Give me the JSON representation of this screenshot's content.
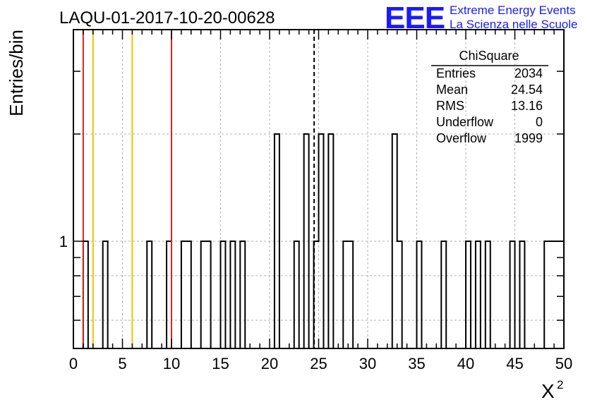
{
  "chart_data": {
    "type": "histogram",
    "title": "LAQU-01-2017-10-20-00628",
    "xlabel": "X",
    "xlabel_superscript": "2",
    "ylabel": "Entries/bin",
    "xlim": [
      0,
      50
    ],
    "ylim": [
      0.5,
      4
    ],
    "y_scale": "log",
    "grid": true,
    "x_ticks": [
      0,
      5,
      10,
      15,
      20,
      25,
      30,
      35,
      40,
      45,
      50
    ],
    "y_tick_labels": [
      {
        "value": 1,
        "label": "1"
      }
    ],
    "bin_width": 0.5,
    "bins": [
      {
        "x": 1.0,
        "value": 1
      },
      {
        "x": 3.0,
        "value": 1
      },
      {
        "x": 7.5,
        "value": 1
      },
      {
        "x": 9.5,
        "value": 1
      },
      {
        "x": 11.0,
        "value": 1
      },
      {
        "x": 11.5,
        "value": 1
      },
      {
        "x": 13.0,
        "value": 1
      },
      {
        "x": 13.5,
        "value": 1
      },
      {
        "x": 15.0,
        "value": 1
      },
      {
        "x": 16.0,
        "value": 1
      },
      {
        "x": 17.0,
        "value": 1
      },
      {
        "x": 20.5,
        "value": 2
      },
      {
        "x": 22.5,
        "value": 1
      },
      {
        "x": 23.5,
        "value": 2
      },
      {
        "x": 24.5,
        "value": 1
      },
      {
        "x": 25.0,
        "value": 2
      },
      {
        "x": 26.0,
        "value": 2
      },
      {
        "x": 27.5,
        "value": 1
      },
      {
        "x": 28.0,
        "value": 1
      },
      {
        "x": 32.5,
        "value": 2
      },
      {
        "x": 33.0,
        "value": 1
      },
      {
        "x": 35.0,
        "value": 1
      },
      {
        "x": 37.5,
        "value": 1
      },
      {
        "x": 40.0,
        "value": 1
      },
      {
        "x": 41.0,
        "value": 1
      },
      {
        "x": 42.0,
        "value": 1
      },
      {
        "x": 44.5,
        "value": 1
      },
      {
        "x": 45.5,
        "value": 1
      },
      {
        "x": 48.0,
        "value": 1
      },
      {
        "x": 48.5,
        "value": 1
      },
      {
        "x": 49.0,
        "value": 1
      },
      {
        "x": 49.5,
        "value": 1
      }
    ],
    "vertical_lines": [
      {
        "x": 1,
        "color": "#dd2222",
        "style": "solid"
      },
      {
        "x": 2,
        "color": "#f2c200",
        "style": "solid"
      },
      {
        "x": 6,
        "color": "#f2c200",
        "style": "solid"
      },
      {
        "x": 10,
        "color": "#dd2222",
        "style": "solid"
      },
      {
        "x": 24.54,
        "color": "#000000",
        "style": "dashed"
      }
    ],
    "stats_box": {
      "title": "ChiSquare",
      "rows": [
        {
          "label": "Entries",
          "value": "2034"
        },
        {
          "label": "Mean",
          "value": "24.54"
        },
        {
          "label": "RMS",
          "value": "13.16"
        },
        {
          "label": "Underflow",
          "value": "0"
        },
        {
          "label": "Overflow",
          "value": "1999"
        }
      ]
    },
    "logo": {
      "text": "EEE",
      "line1": "Extreme Energy Events",
      "line2": "La Scienza nelle Scuole",
      "color": "#1a1aff"
    }
  }
}
